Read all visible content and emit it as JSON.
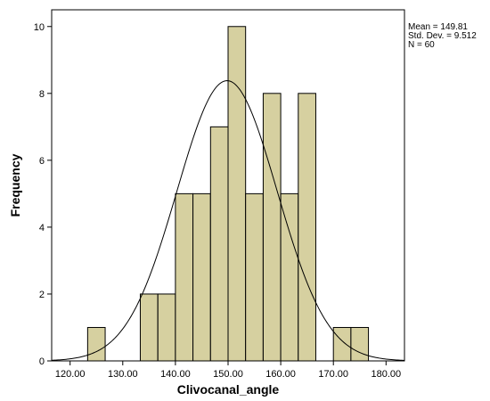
{
  "chart_data": {
    "type": "histogram",
    "xlabel": "Clivocanal_angle",
    "ylabel": "Frequency",
    "bin_width": 3.33,
    "bins": [
      {
        "start": 123.33,
        "count": 1
      },
      {
        "start": 126.67,
        "count": 0
      },
      {
        "start": 130.0,
        "count": 0
      },
      {
        "start": 133.33,
        "count": 2
      },
      {
        "start": 136.67,
        "count": 2
      },
      {
        "start": 140.0,
        "count": 5
      },
      {
        "start": 143.33,
        "count": 5
      },
      {
        "start": 146.67,
        "count": 7
      },
      {
        "start": 150.0,
        "count": 10
      },
      {
        "start": 153.33,
        "count": 5
      },
      {
        "start": 156.67,
        "count": 8
      },
      {
        "start": 160.0,
        "count": 5
      },
      {
        "start": 163.33,
        "count": 8
      },
      {
        "start": 166.67,
        "count": 0
      },
      {
        "start": 170.0,
        "count": 1
      },
      {
        "start": 173.33,
        "count": 1
      }
    ],
    "normal_curve": {
      "mean": 149.81,
      "sd": 9.512,
      "n": 60
    },
    "stats": [
      "Mean = 149.81",
      "Std. Dev. = 9.512",
      "N = 60"
    ],
    "xlim": [
      116.5,
      183.5
    ],
    "ylim": [
      0,
      10.5
    ],
    "xticks": [
      "120.00",
      "130.00",
      "140.00",
      "150.00",
      "160.00",
      "170.00",
      "180.00"
    ],
    "xtick_values": [
      120,
      130,
      140,
      150,
      160,
      170,
      180
    ],
    "yticks": [
      "0",
      "2",
      "4",
      "6",
      "8",
      "10"
    ],
    "ytick_values": [
      0,
      2,
      4,
      6,
      8,
      10
    ],
    "bar_fill": "#d6d0a0",
    "bar_stroke": "#000000",
    "grid": false
  }
}
